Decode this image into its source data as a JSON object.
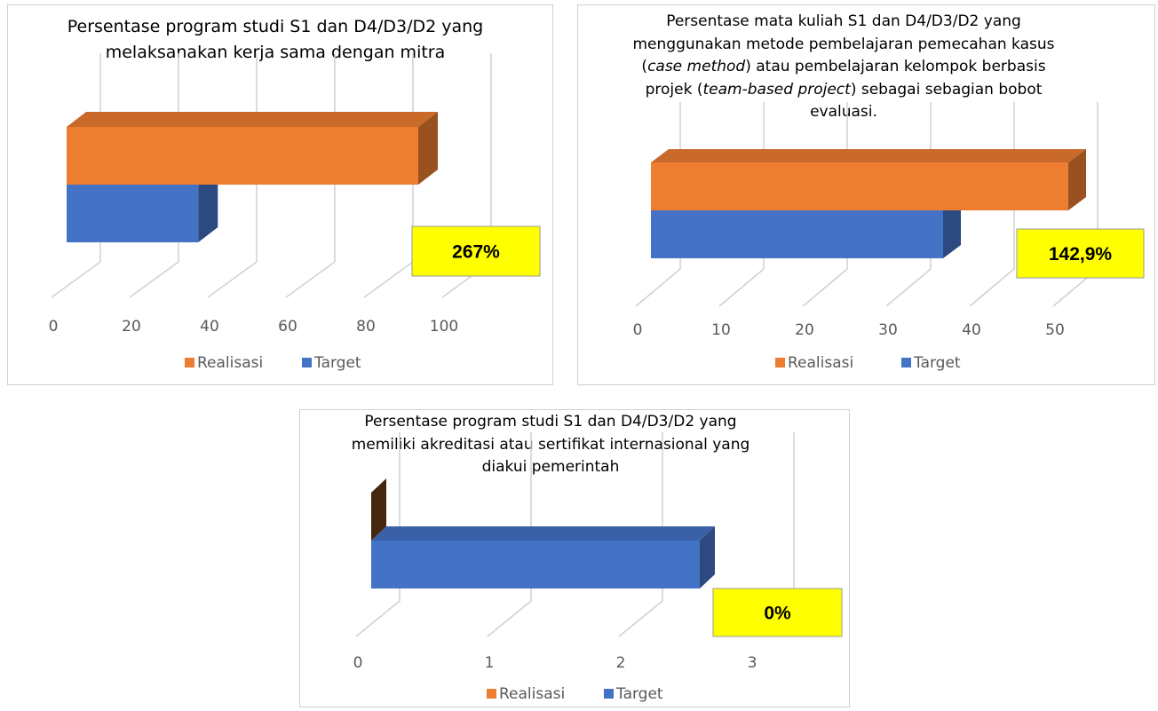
{
  "chart_data": [
    {
      "type": "bar3d_horizontal",
      "title": [
        {
          "text": "Persentase program studi S1 dan D4/D3/D2 yang melaksanakan kerja sama dengan mitra",
          "italic": false
        }
      ],
      "categories": [
        null
      ],
      "series": [
        {
          "name": "Realisasi",
          "color": "#ed7d31",
          "values": [
            90
          ]
        },
        {
          "name": "Target",
          "color": "#4472c4",
          "values": [
            33.7
          ]
        }
      ],
      "xlim": [
        0,
        100
      ],
      "xticks": [
        0,
        20,
        40,
        60,
        80,
        100
      ],
      "annotation": "267%",
      "legend": "bottom"
    },
    {
      "type": "bar3d_horizontal",
      "title": [
        {
          "text": "Persentase mata kuliah S1 dan D4/D3/D2 yang menggunakan metode pembelajaran pemecahan kasus (",
          "italic": false
        },
        {
          "text": "case method",
          "italic": true
        },
        {
          "text": ") atau pembelajaran kelompok berbasis projek (",
          "italic": false
        },
        {
          "text": "team-based project",
          "italic": true
        },
        {
          "text": ") sebagai sebagian bobot evaluasi.",
          "italic": false
        }
      ],
      "categories": [
        null
      ],
      "series": [
        {
          "name": "Realisasi",
          "color": "#ed7d31",
          "values": [
            50
          ]
        },
        {
          "name": "Target",
          "color": "#4472c4",
          "values": [
            35
          ]
        }
      ],
      "xlim": [
        0,
        50
      ],
      "xticks": [
        0,
        10,
        20,
        30,
        40,
        50
      ],
      "annotation": "142,9%",
      "legend": "bottom"
    },
    {
      "type": "bar3d_horizontal",
      "title": [
        {
          "text": "Persentase program studi S1 dan D4/D3/D2 yang memiliki akreditasi atau sertifikat internasional yang diakui pemerintah",
          "italic": false
        }
      ],
      "categories": [
        null
      ],
      "series": [
        {
          "name": "Realisasi",
          "color": "#ed7d31",
          "values": [
            0
          ]
        },
        {
          "name": "Target",
          "color": "#4472c4",
          "values": [
            2.5
          ]
        }
      ],
      "xlim": [
        0,
        3
      ],
      "xticks": [
        0,
        1,
        2,
        3
      ],
      "annotation": "0%",
      "legend": "bottom"
    }
  ]
}
